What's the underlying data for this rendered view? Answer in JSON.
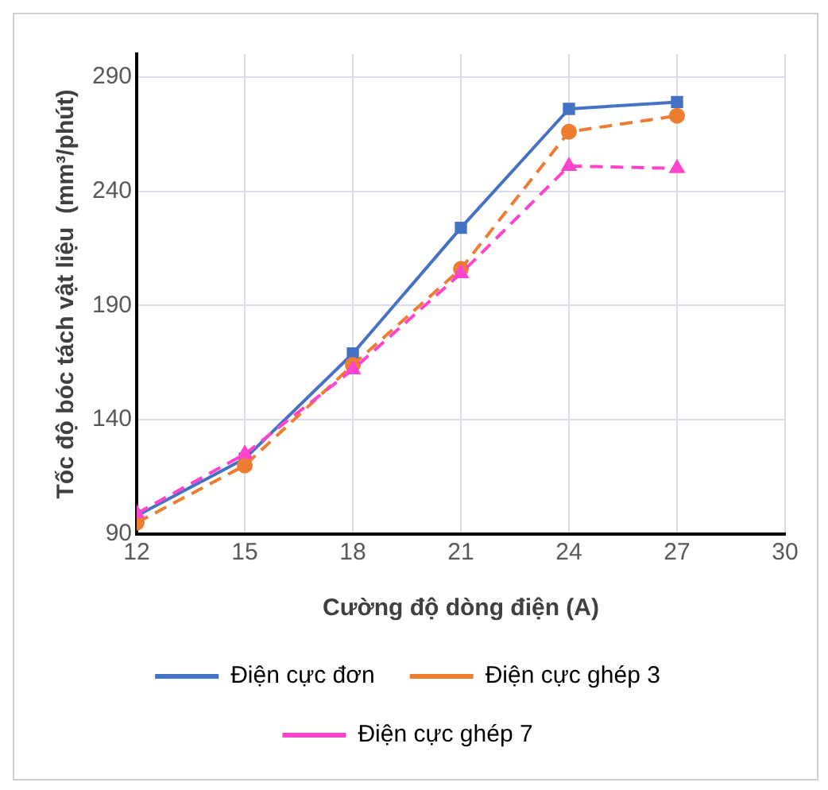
{
  "chart_data": {
    "type": "line",
    "xlabel": "Cường độ dòng điện (A)",
    "ylabel": "Tốc độ bóc tách vật liệu  (mm³/phút)",
    "x": [
      12,
      15,
      18,
      21,
      24,
      27
    ],
    "series": [
      {
        "name": "Điện cực đơn",
        "color": "#4472c4",
        "marker": "square",
        "line_style": "solid",
        "values": [
          98,
          123,
          169,
          224,
          276,
          279
        ]
      },
      {
        "name": "Điện cực ghép 3",
        "color": "#ed7d31",
        "marker": "circle",
        "line_style": "dashed",
        "values": [
          95,
          120,
          164,
          206,
          266,
          273
        ]
      },
      {
        "name": "Điện cực ghép 7",
        "color": "#ff44cc",
        "marker": "triangle",
        "line_style": "dashed",
        "values": [
          99,
          125,
          162,
          204,
          251,
          250
        ]
      }
    ],
    "xlim": [
      12,
      30
    ],
    "xticks": [
      12,
      15,
      18,
      21,
      24,
      27,
      30
    ],
    "ylim": [
      90,
      300
    ],
    "yticks": [
      90,
      140,
      190,
      240,
      290
    ],
    "grid": true,
    "legend": "bottom"
  }
}
